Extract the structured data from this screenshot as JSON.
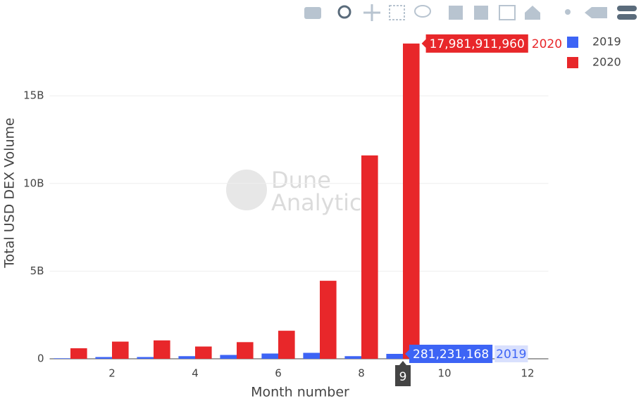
{
  "chart_data": {
    "type": "bar",
    "x": [
      1,
      2,
      3,
      4,
      5,
      6,
      7,
      8,
      9
    ],
    "series": [
      {
        "name": "2019",
        "color": "#3d64f5",
        "values": [
          30000000,
          100000000,
          100000000,
          150000000,
          220000000,
          300000000,
          340000000,
          150000000,
          281231168
        ],
        "value_labels": [
          null,
          null,
          null,
          null,
          null,
          null,
          null,
          null,
          "281,231,168"
        ]
      },
      {
        "name": "2020",
        "color": "#e8272a",
        "values": [
          600000000,
          980000000,
          1050000000,
          700000000,
          950000000,
          1600000000,
          4450000000,
          11600000000,
          17981911960
        ],
        "value_labels": [
          null,
          null,
          null,
          null,
          null,
          null,
          null,
          null,
          "17,981,911,960"
        ]
      }
    ],
    "xlabel": "Month number",
    "ylabel": "Total USD DEX Volume",
    "xlim": [
      0.5,
      12.5
    ],
    "xticks": [
      2,
      4,
      6,
      8,
      10,
      12
    ],
    "ylim": [
      0,
      18900000000
    ],
    "yticks": [
      0,
      {
        "value": 5000000000,
        "label": "5B"
      },
      {
        "value": 10000000000,
        "label": "10B"
      },
      {
        "value": 15000000000,
        "label": "15B"
      }
    ],
    "grid": true,
    "legend": "top-right",
    "watermark": [
      "Dune",
      "Analytics"
    ]
  }
}
